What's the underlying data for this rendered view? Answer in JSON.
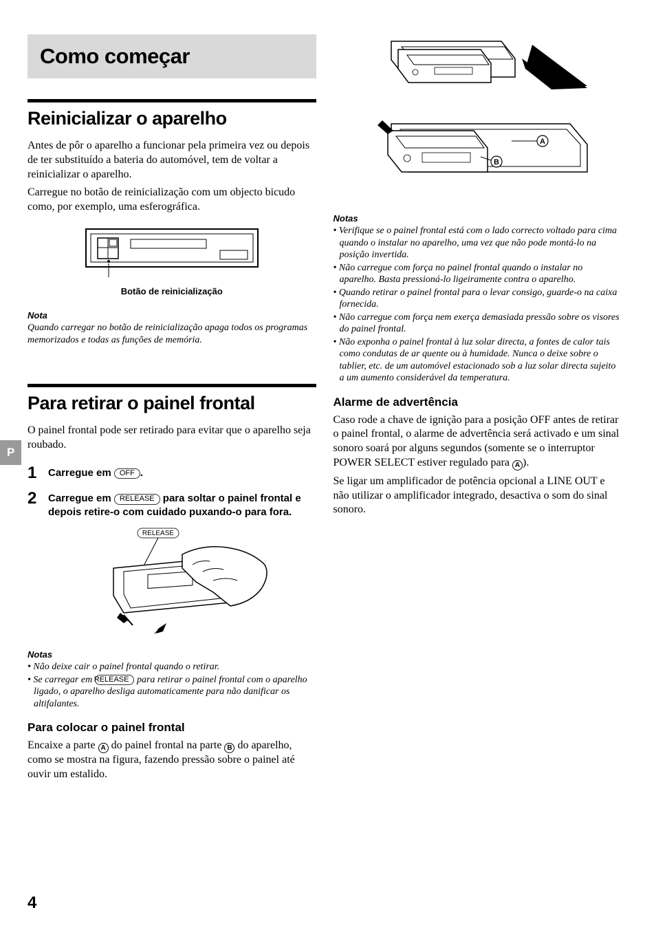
{
  "sideTab": "P",
  "pageNumber": "4",
  "mainHeader": "Como começar",
  "leftColumn": {
    "section1": {
      "title": "Reinicializar o aparelho",
      "para1": "Antes de pôr o aparelho a funcionar pela primeira vez ou depois de ter substituído a bateria do automóvel, tem de voltar a reinicializar o aparelho.",
      "para2": "Carregue no botão de reinicialização com um objecto bicudo como, por exemplo, uma esferográfica.",
      "diagramCaption": "Botão de reinicialização",
      "notaLabel": "Nota",
      "notaText": "Quando carregar no botão de reinicialização apaga todos os programas memorizados e todas as funções de memória."
    },
    "section2": {
      "title": "Para retirar o painel frontal",
      "para1": "O painel frontal pode ser retirado para evitar que o aparelho seja roubado.",
      "step1_pre": "Carregue em ",
      "step1_btn": "OFF",
      "step1_post": ".",
      "step2_pre": "Carregue em ",
      "step2_btn": "RELEASE",
      "step2_post": " para soltar o painel frontal e depois retire-o com cuidado puxando-o para fora.",
      "releaseLabel": "RELEASE",
      "notasLabel": "Notas",
      "nota1": "Não deixe cair o painel frontal quando o retirar.",
      "nota2_pre": "Se carregar em ",
      "nota2_btn": "RELEASE",
      "nota2_post": " para retirar o painel frontal com o aparelho ligado, o aparelho desliga automaticamente para não danificar os altifalantes.",
      "subTitle": "Para colocar o painel frontal",
      "subPara_pre": "Encaixe a parte ",
      "subPara_a": "A",
      "subPara_mid": " do painel frontal na parte ",
      "subPara_b": "B",
      "subPara_post": " do aparelho, como se mostra na figura, fazendo pressão sobre o painel até ouvir um estalido."
    }
  },
  "rightColumn": {
    "labelA": "A",
    "labelB": "B",
    "notasLabel": "Notas",
    "notas": [
      "Verifique se o painel frontal está com o lado correcto voltado para cima quando o instalar no aparelho, uma vez que não pode montá-lo na posição invertida.",
      "Não carregue com força no painel frontal quando o instalar no aparelho. Basta pressioná-lo ligeiramente contra o aparelho.",
      "Quando retirar o painel frontal para o levar consigo, guarde-o na caixa fornecida.",
      "Não carregue com força nem exerça demasiada pressão sobre os visores do painel frontal.",
      "Não exponha o painel frontal à luz solar directa, a fontes de calor tais como condutas de ar quente ou à humidade. Nunca o deixe sobre o tablier, etc. de um automóvel estacionado sob a luz solar directa sujeito a um aumento considerável da temperatura."
    ],
    "subTitle": "Alarme de advertência",
    "para1_pre": "Caso rode a chave de ignição para a posição OFF antes de retirar o painel frontal, o alarme de advertência será activado e um sinal sonoro soará por alguns segundos (somente se o interruptor POWER SELECT estiver regulado para ",
    "para1_a": "A",
    "para1_post": ").",
    "para2": "Se ligar um amplificador de potência opcional a LINE OUT e não utilizar o amplificador integrado, desactiva o som do sinal sonoro."
  }
}
